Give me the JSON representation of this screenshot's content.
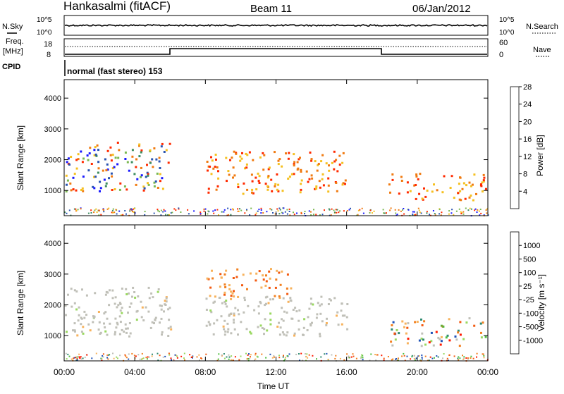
{
  "header": {
    "station": "Hankasalmi (fitACF)",
    "beam": "Beam 11",
    "date": "06/Jan/2012"
  },
  "top_panels": {
    "nsky_label": "N.Sky",
    "nsearch_label": "N.Search",
    "noise_ticks_top": "10^5",
    "noise_ticks_bottom": "10^0",
    "freq_label_line1": "Freq.",
    "freq_label_line2": "[MHz]",
    "freq_tick_top": "18",
    "freq_tick_bottom": "8",
    "nave_label": "Nave",
    "nave_tick_top": "60",
    "nave_tick_bottom": "0",
    "cpid_label": "CPID",
    "cpid_value": "normal (fast stereo) 153"
  },
  "chart_data": [
    {
      "type": "heatmap",
      "title": "Power",
      "ylabel": "Slant Range [km]",
      "xlabel": "",
      "ylim": [
        180,
        4600
      ],
      "yticks": [
        "1000",
        "2000",
        "3000",
        "4000"
      ],
      "xticks": [
        "00:00",
        "04:00",
        "08:00",
        "12:00",
        "16:00",
        "20:00",
        "00:00"
      ],
      "colorbar_label": "Power [dB]",
      "colorbar_ticks": [
        "4",
        "8",
        "12",
        "16",
        "20",
        "24",
        "28"
      ],
      "colorbar_colors": [
        "#1a1aff",
        "#2a54b0",
        "#3e8e60",
        "#7ab850",
        "#f5c020",
        "#f07a10",
        "#ff2a00"
      ],
      "regions": [
        {
          "t0": 0.0,
          "t1": 6.0,
          "r0": 1000,
          "r1": 2600,
          "level": "mixed-low"
        },
        {
          "t0": 0.0,
          "t1": 1.5,
          "r0": 950,
          "r1": 1200,
          "level": "high"
        },
        {
          "t0": 8.0,
          "t1": 16.0,
          "r0": 900,
          "r1": 2300,
          "level": "high"
        },
        {
          "t0": 18.3,
          "t1": 23.9,
          "r0": 700,
          "r1": 1600,
          "level": "high"
        }
      ]
    },
    {
      "type": "heatmap",
      "title": "Velocity",
      "ylabel": "Slant Range [km]",
      "xlabel": "Time UT",
      "ylim": [
        180,
        4600
      ],
      "yticks": [
        "1000",
        "2000",
        "3000",
        "4000"
      ],
      "xticks": [
        "00:00",
        "04:00",
        "08:00",
        "12:00",
        "16:00",
        "20:00",
        "00:00"
      ],
      "colorbar_label": "Velocity [m s⁻¹]",
      "colorbar_ticks": [
        "1000",
        "500",
        "100",
        "25",
        "-25",
        "-100",
        "-500",
        "-1000"
      ],
      "colorbar_colors": [
        "#1f52b8",
        "#2f8a70",
        "#4fbf40",
        "#9ad860",
        "#c0c0b8",
        "#f7b25c",
        "#f28020",
        "#f25a10",
        "#ff1a00"
      ],
      "regions": [
        {
          "t0": 0.0,
          "t1": 6.0,
          "r0": 1000,
          "r1": 2600,
          "level": "ground-grey"
        },
        {
          "t0": 8.0,
          "t1": 16.0,
          "r0": 1000,
          "r1": 2300,
          "level": "ground-grey"
        },
        {
          "t0": 8.0,
          "t1": 13.0,
          "r0": 2300,
          "r1": 3200,
          "level": "negative"
        },
        {
          "t0": 18.3,
          "t1": 23.9,
          "r0": 700,
          "r1": 1600,
          "level": "positive-mixed"
        }
      ]
    }
  ]
}
